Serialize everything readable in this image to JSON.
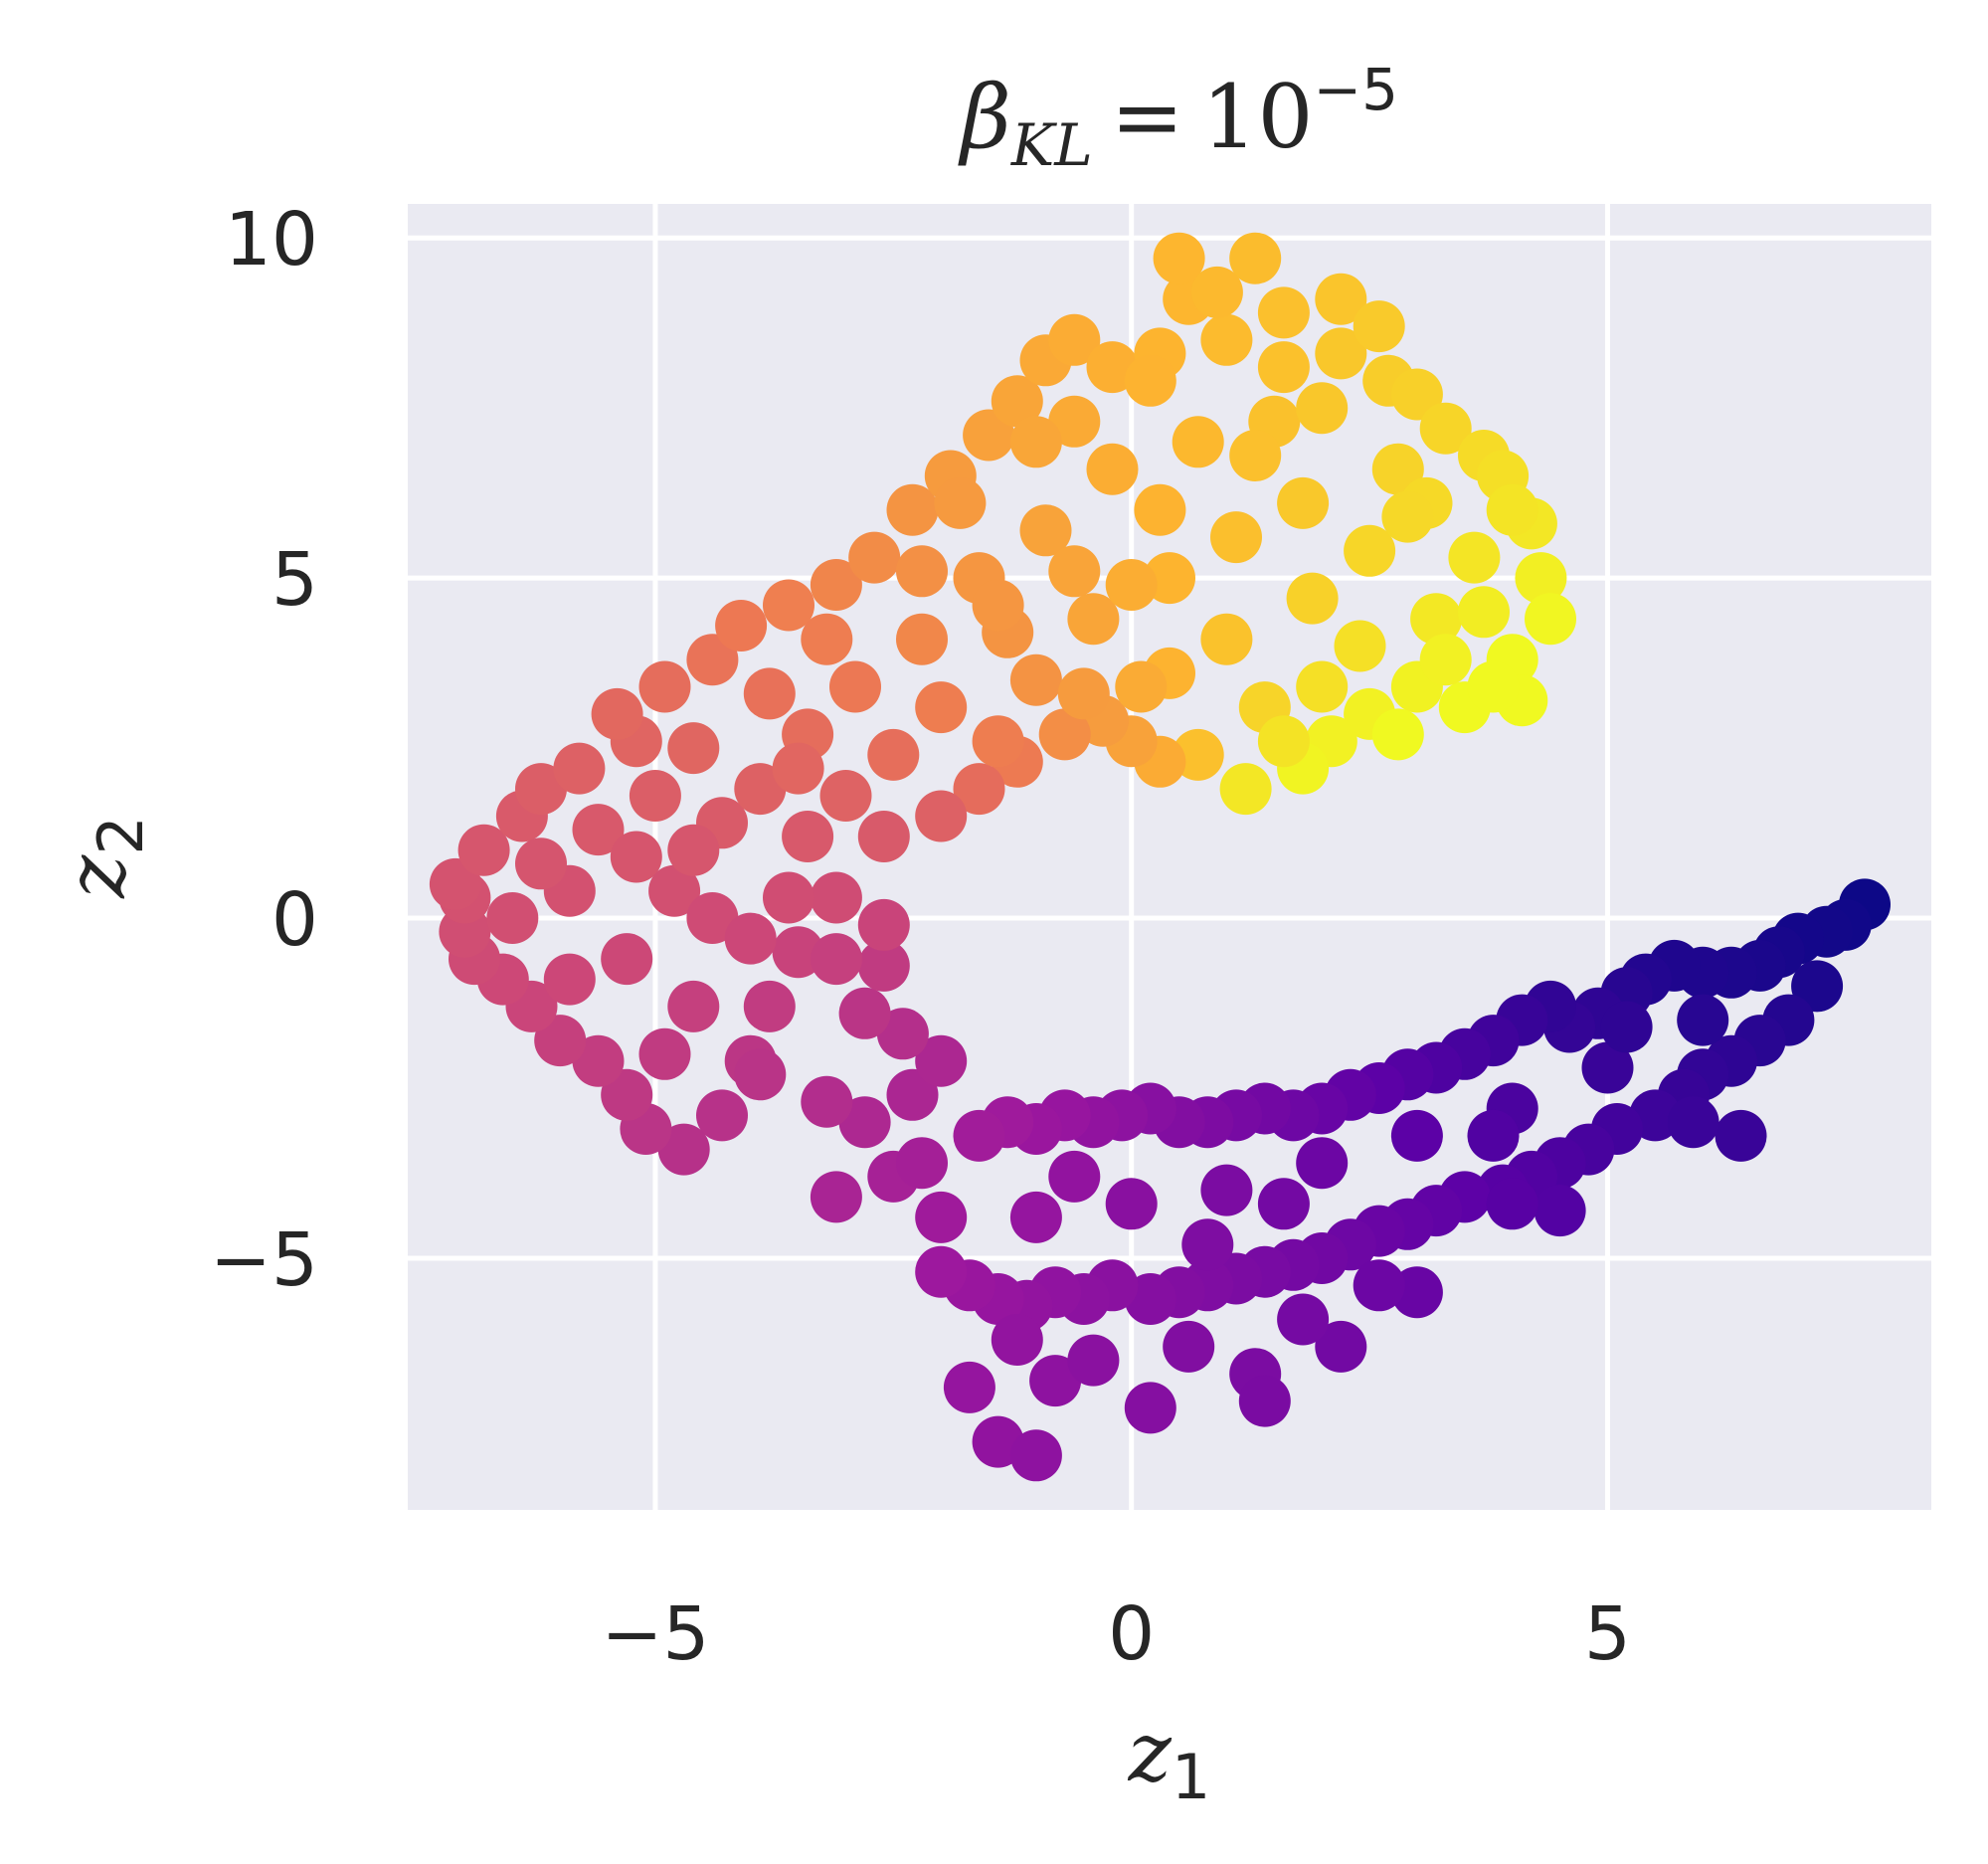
{
  "chart_data": {
    "type": "scatter",
    "title": {
      "symbol": "β",
      "subscript": "KL",
      "equals": "=",
      "base": "10",
      "exponent": "−5"
    },
    "xlabel": {
      "symbol": "z",
      "subscript": "1"
    },
    "ylabel": {
      "symbol": "z",
      "subscript": "2"
    },
    "xlim": [
      -7.6,
      8.4
    ],
    "ylim": [
      -8.7,
      10.5
    ],
    "xticks": [
      {
        "value": -5,
        "label": "−5"
      },
      {
        "value": 0,
        "label": "0"
      },
      {
        "value": 5,
        "label": "5"
      }
    ],
    "yticks": [
      {
        "value": -5,
        "label": "−5"
      },
      {
        "value": 0,
        "label": "0"
      },
      {
        "value": 5,
        "label": "5"
      },
      {
        "value": 10,
        "label": "10"
      }
    ],
    "grid": true,
    "background": "#eaeaf2",
    "colormap": "plasma",
    "colormap_stops": [
      "#0d0887",
      "#5c01a6",
      "#9c179e",
      "#cc4778",
      "#ed7953",
      "#fdb42f",
      "#f0f921"
    ],
    "color_encoding": "angle along the ring, from the lower-right tip (dark blue) through the bottom and left side to the upper-right (yellow)",
    "points": [
      [
        7.7,
        0.2
      ],
      [
        7.5,
        -0.1
      ],
      [
        7.3,
        -0.2
      ],
      [
        7.0,
        -0.3
      ],
      [
        6.8,
        -0.5
      ],
      [
        6.6,
        -0.7
      ],
      [
        6.3,
        -0.8
      ],
      [
        6.0,
        -0.8
      ],
      [
        5.7,
        -0.7
      ],
      [
        5.4,
        -0.9
      ],
      [
        5.2,
        -1.1
      ],
      [
        4.9,
        -1.4
      ],
      [
        4.6,
        -1.6
      ],
      [
        4.4,
        -1.3
      ],
      [
        4.1,
        -1.5
      ],
      [
        3.8,
        -1.8
      ],
      [
        3.5,
        -2.0
      ],
      [
        3.2,
        -2.2
      ],
      [
        2.9,
        -2.3
      ],
      [
        2.6,
        -2.5
      ],
      [
        2.3,
        -2.6
      ],
      [
        2.0,
        -2.8
      ],
      [
        1.7,
        -2.9
      ],
      [
        1.4,
        -2.8
      ],
      [
        1.1,
        -2.9
      ],
      [
        0.8,
        -3.0
      ],
      [
        0.5,
        -3.0
      ],
      [
        0.2,
        -2.8
      ],
      [
        -0.1,
        -2.9
      ],
      [
        -0.4,
        -3.0
      ],
      [
        -0.7,
        -2.9
      ],
      [
        -1.0,
        -3.1
      ],
      [
        -1.3,
        -3.0
      ],
      [
        -1.6,
        -3.2
      ],
      [
        7.2,
        -1.0
      ],
      [
        6.9,
        -1.5
      ],
      [
        6.6,
        -1.8
      ],
      [
        6.3,
        -2.1
      ],
      [
        6.0,
        -2.3
      ],
      [
        5.8,
        -2.6
      ],
      [
        5.5,
        -2.9
      ],
      [
        5.1,
        -3.1
      ],
      [
        4.8,
        -3.4
      ],
      [
        4.5,
        -3.6
      ],
      [
        4.2,
        -3.8
      ],
      [
        3.9,
        -4.0
      ],
      [
        3.5,
        -4.1
      ],
      [
        3.2,
        -4.3
      ],
      [
        2.9,
        -4.5
      ],
      [
        2.6,
        -4.6
      ],
      [
        2.3,
        -4.8
      ],
      [
        2.0,
        -5.0
      ],
      [
        1.7,
        -5.1
      ],
      [
        1.4,
        -5.2
      ],
      [
        1.1,
        -5.3
      ],
      [
        0.8,
        -5.4
      ],
      [
        0.5,
        -5.5
      ],
      [
        0.2,
        -5.6
      ],
      [
        -0.2,
        -5.4
      ],
      [
        -0.5,
        -5.6
      ],
      [
        -0.8,
        -5.5
      ],
      [
        -1.1,
        -5.7
      ],
      [
        -1.4,
        -5.6
      ],
      [
        -1.7,
        -5.4
      ],
      [
        -2.0,
        -5.2
      ],
      [
        6.4,
        -3.2
      ],
      [
        5.9,
        -3.0
      ],
      [
        4.5,
        -4.3
      ],
      [
        4.0,
        -4.2
      ],
      [
        3.0,
        -5.5
      ],
      [
        2.2,
        -6.3
      ],
      [
        1.3,
        -6.7
      ],
      [
        0.2,
        -7.2
      ],
      [
        -0.8,
        -6.8
      ],
      [
        -1.7,
        -6.9
      ],
      [
        -1.4,
        -7.7
      ],
      [
        -1.0,
        -7.9
      ],
      [
        1.4,
        -7.1
      ],
      [
        -2.0,
        -4.4
      ],
      [
        -2.5,
        -3.8
      ],
      [
        -3.1,
        -4.1
      ],
      [
        -2.8,
        -3.0
      ],
      [
        -2.3,
        -2.6
      ],
      [
        -2.0,
        -2.1
      ],
      [
        -2.4,
        -1.7
      ],
      [
        -2.8,
        -1.4
      ],
      [
        -2.6,
        -0.7
      ],
      [
        -2.6,
        -0.1
      ],
      [
        -3.1,
        0.3
      ],
      [
        -3.5,
        -0.5
      ],
      [
        -3.8,
        -1.3
      ],
      [
        -4.0,
        -2.1
      ],
      [
        -4.3,
        -2.9
      ],
      [
        -4.7,
        -3.4
      ],
      [
        -5.1,
        -3.1
      ],
      [
        -5.3,
        -2.6
      ],
      [
        -5.6,
        -2.1
      ],
      [
        -6.0,
        -1.8
      ],
      [
        -6.3,
        -1.3
      ],
      [
        -6.6,
        -0.9
      ],
      [
        -6.9,
        -0.6
      ],
      [
        -7.0,
        -0.2
      ],
      [
        -7.0,
        0.3
      ],
      [
        -7.1,
        0.5
      ],
      [
        -6.8,
        1.0
      ],
      [
        -6.4,
        1.5
      ],
      [
        -6.2,
        1.9
      ],
      [
        -5.8,
        2.2
      ],
      [
        -5.6,
        1.3
      ],
      [
        -5.2,
        0.9
      ],
      [
        -4.8,
        0.4
      ],
      [
        -4.4,
        0.0
      ],
      [
        -4.0,
        -0.3
      ],
      [
        -3.6,
        0.3
      ],
      [
        -4.3,
        1.4
      ],
      [
        -3.9,
        1.9
      ],
      [
        -3.4,
        1.2
      ],
      [
        -3.0,
        1.8
      ],
      [
        -2.6,
        1.2
      ],
      [
        -5.2,
        2.6
      ],
      [
        -5.4,
        3.0
      ],
      [
        -4.9,
        3.4
      ],
      [
        -4.4,
        3.8
      ],
      [
        -4.1,
        4.3
      ],
      [
        -3.6,
        4.6
      ],
      [
        -3.1,
        4.9
      ],
      [
        -2.7,
        5.3
      ],
      [
        -2.3,
        6.0
      ],
      [
        -1.9,
        6.5
      ],
      [
        -1.5,
        7.1
      ],
      [
        -1.2,
        7.6
      ],
      [
        -0.9,
        8.2
      ],
      [
        -0.6,
        8.5
      ],
      [
        -0.2,
        8.1
      ],
      [
        0.3,
        8.3
      ],
      [
        0.6,
        9.1
      ],
      [
        0.5,
        9.7
      ],
      [
        1.3,
        9.7
      ],
      [
        1.6,
        8.9
      ],
      [
        2.2,
        8.3
      ],
      [
        2.7,
        7.9
      ],
      [
        2.2,
        9.1
      ],
      [
        3.0,
        7.7
      ],
      [
        3.3,
        7.2
      ],
      [
        3.7,
        6.8
      ],
      [
        3.9,
        6.5
      ],
      [
        4.2,
        5.8
      ],
      [
        4.3,
        5.0
      ],
      [
        4.4,
        4.4
      ],
      [
        4.0,
        3.8
      ],
      [
        4.1,
        3.2
      ],
      [
        3.5,
        3.1
      ],
      [
        3.0,
        3.4
      ],
      [
        2.5,
        3.0
      ],
      [
        2.1,
        2.6
      ],
      [
        1.8,
        2.2
      ],
      [
        1.2,
        1.9
      ],
      [
        0.7,
        2.4
      ],
      [
        0.3,
        2.3
      ],
      [
        0.0,
        2.6
      ],
      [
        -0.3,
        2.9
      ],
      [
        -0.7,
        2.7
      ],
      [
        -1.2,
        2.3
      ],
      [
        -1.6,
        1.9
      ],
      [
        -2.0,
        1.5
      ],
      [
        -1.0,
        3.5
      ],
      [
        -0.4,
        4.4
      ],
      [
        0.4,
        5.0
      ],
      [
        1.1,
        5.6
      ],
      [
        1.8,
        6.1
      ],
      [
        2.5,
        5.4
      ],
      [
        3.2,
        4.4
      ],
      [
        3.6,
        5.3
      ],
      [
        2.8,
        6.6
      ],
      [
        1.5,
        7.3
      ],
      [
        0.7,
        7.0
      ],
      [
        -0.2,
        6.6
      ],
      [
        -0.9,
        5.7
      ],
      [
        -1.6,
        5.0
      ],
      [
        -2.2,
        4.1
      ],
      [
        -2.9,
        3.4
      ],
      [
        -3.4,
        2.7
      ],
      [
        -2.0,
        3.1
      ],
      [
        -1.3,
        4.2
      ],
      [
        0.0,
        4.9
      ],
      [
        1.0,
        4.1
      ],
      [
        1.9,
        4.7
      ],
      [
        2.4,
        4.0
      ],
      [
        3.3,
        3.8
      ],
      [
        0.4,
        3.6
      ],
      [
        -0.5,
        3.3
      ],
      [
        1.4,
        3.1
      ],
      [
        2.0,
        3.4
      ],
      [
        -3.8,
        3.3
      ],
      [
        -4.6,
        2.5
      ],
      [
        -2.5,
        2.4
      ],
      [
        -1.8,
        6.1
      ],
      [
        -0.6,
        7.3
      ],
      [
        0.2,
        7.9
      ],
      [
        1.0,
        8.5
      ],
      [
        2.0,
        7.5
      ],
      [
        -5.9,
        0.4
      ],
      [
        -5.3,
        -0.6
      ],
      [
        -4.6,
        -1.3
      ],
      [
        -3.9,
        -2.3
      ],
      [
        -3.2,
        -2.7
      ],
      [
        -5.9,
        -0.9
      ],
      [
        -4.9,
        -2.0
      ],
      [
        -2.2,
        -3.6
      ],
      [
        -1.0,
        -4.4
      ],
      [
        0.0,
        -4.2
      ],
      [
        1.0,
        -4.0
      ],
      [
        2.0,
        -3.6
      ],
      [
        3.0,
        -3.2
      ],
      [
        4.0,
        -2.8
      ],
      [
        5.0,
        -2.2
      ],
      [
        6.0,
        -1.5
      ],
      [
        0.6,
        -6.3
      ],
      [
        -0.4,
        -6.5
      ],
      [
        -1.2,
        -6.2
      ],
      [
        1.8,
        -5.9
      ],
      [
        2.6,
        -5.4
      ],
      [
        -0.6,
        -3.8
      ],
      [
        0.8,
        -4.8
      ],
      [
        1.6,
        -4.2
      ],
      [
        3.8,
        -3.2
      ],
      [
        5.2,
        -1.6
      ],
      [
        -6.5,
        0.0
      ],
      [
        -6.2,
        0.8
      ],
      [
        -5.0,
        1.8
      ],
      [
        -3.1,
        -0.6
      ],
      [
        -4.6,
        1.0
      ],
      [
        -3.5,
        2.2
      ],
      [
        -1.4,
        2.6
      ],
      [
        0.1,
        3.4
      ],
      [
        1.6,
        2.6
      ],
      [
        2.8,
        2.7
      ],
      [
        3.7,
        4.5
      ],
      [
        4.0,
        6.0
      ],
      [
        3.1,
        6.1
      ],
      [
        1.3,
        6.8
      ],
      [
        0.3,
        6.0
      ],
      [
        -0.6,
        5.1
      ],
      [
        -1.4,
        4.6
      ],
      [
        -2.2,
        5.1
      ],
      [
        -3.2,
        4.1
      ],
      [
        -1.0,
        7.0
      ],
      [
        0.9,
        9.2
      ],
      [
        1.6,
        8.1
      ],
      [
        2.6,
        8.7
      ],
      [
        2.9,
        5.9
      ],
      [
        3.8,
        3.4
      ]
    ]
  }
}
